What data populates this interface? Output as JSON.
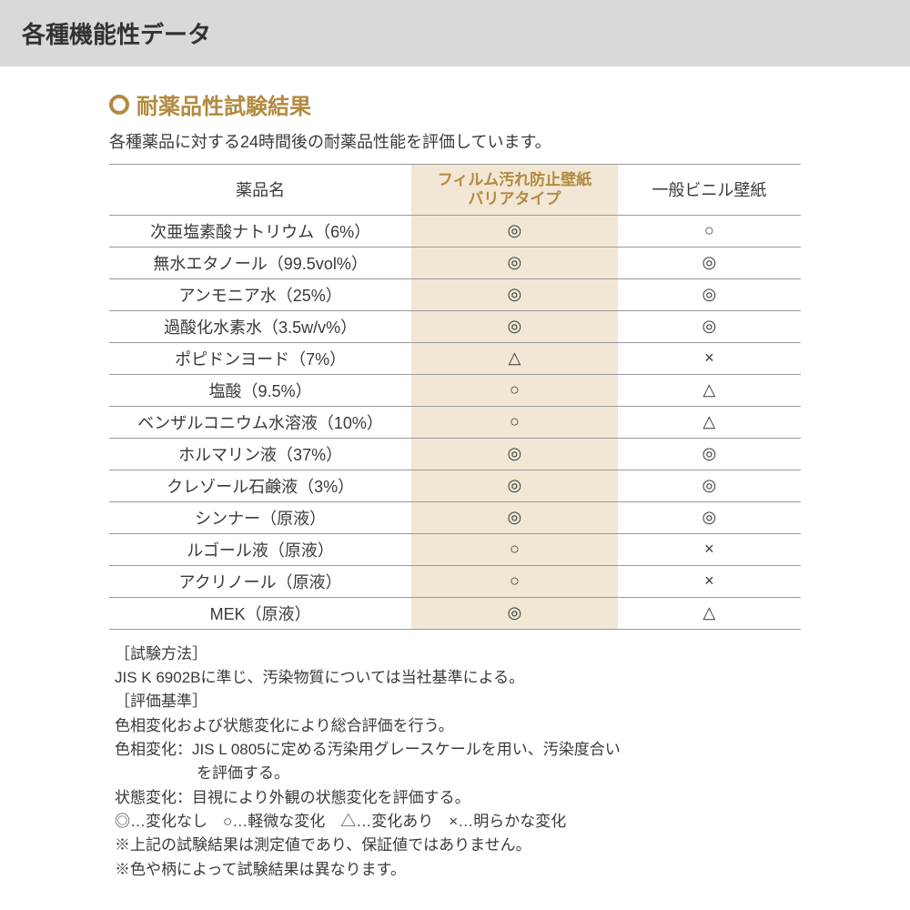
{
  "colors": {
    "header_bg": "#d9d9d9",
    "accent": "#b38a3f",
    "film_bg": "#f2e6d4",
    "border": "#9a9a9a",
    "text": "#333333",
    "body_bg": "#ffffff"
  },
  "header": {
    "title": "各種機能性データ"
  },
  "section": {
    "title": "耐薬品性試験結果",
    "subtitle": "各種薬品に対する24時間後の耐薬品性能を評価しています。"
  },
  "table": {
    "columns": {
      "name": "薬品名",
      "film_line1": "フィルム汚れ防止壁紙",
      "film_line2": "バリアタイプ",
      "general": "一般ビニル壁紙"
    },
    "symbols": {
      "double_circle": "◎",
      "circle": "○",
      "triangle": "△",
      "cross": "×"
    },
    "rows": [
      {
        "name": "次亜塩素酸ナトリウム（6%）",
        "film": "double_circle",
        "general": "circle"
      },
      {
        "name": "無水エタノール（99.5vol%）",
        "film": "double_circle",
        "general": "double_circle"
      },
      {
        "name": "アンモニア水（25%）",
        "film": "double_circle",
        "general": "double_circle"
      },
      {
        "name": "過酸化水素水（3.5w/v%）",
        "film": "double_circle",
        "general": "double_circle"
      },
      {
        "name": "ポピドンヨード（7%）",
        "film": "triangle",
        "general": "cross"
      },
      {
        "name": "塩酸（9.5%）",
        "film": "circle",
        "general": "triangle"
      },
      {
        "name": "ベンザルコニウム水溶液（10%）",
        "film": "circle",
        "general": "triangle"
      },
      {
        "name": "ホルマリン液（37%）",
        "film": "double_circle",
        "general": "double_circle"
      },
      {
        "name": "クレゾール石鹸液（3%）",
        "film": "double_circle",
        "general": "double_circle"
      },
      {
        "name": "シンナー（原液）",
        "film": "double_circle",
        "general": "double_circle"
      },
      {
        "name": "ルゴール液（原液）",
        "film": "circle",
        "general": "cross"
      },
      {
        "name": "アクリノール（原液）",
        "film": "circle",
        "general": "cross"
      },
      {
        "name": "MEK（原液）",
        "film": "double_circle",
        "general": "triangle"
      }
    ]
  },
  "notes": {
    "method_label": "［試験方法］",
    "method_text": "JIS K 6902Bに準じ、汚染物質については当社基準による。",
    "criteria_label": "［評価基準］",
    "criteria_text1": "色相変化および状態変化により総合評価を行う。",
    "criteria_text2a": "色相変化：JIS L 0805に定める汚染用グレースケールを用い、汚染度合い",
    "criteria_text2b": "を評価する。",
    "criteria_text3": "状態変化：目視により外観の状態変化を評価する。",
    "legend": "◎…変化なし　○…軽微な変化　△…変化あり　×…明らかな変化",
    "disclaimer1": "※上記の試験結果は測定値であり、保証値ではありません。",
    "disclaimer2": "※色や柄によって試験結果は異なります。"
  }
}
